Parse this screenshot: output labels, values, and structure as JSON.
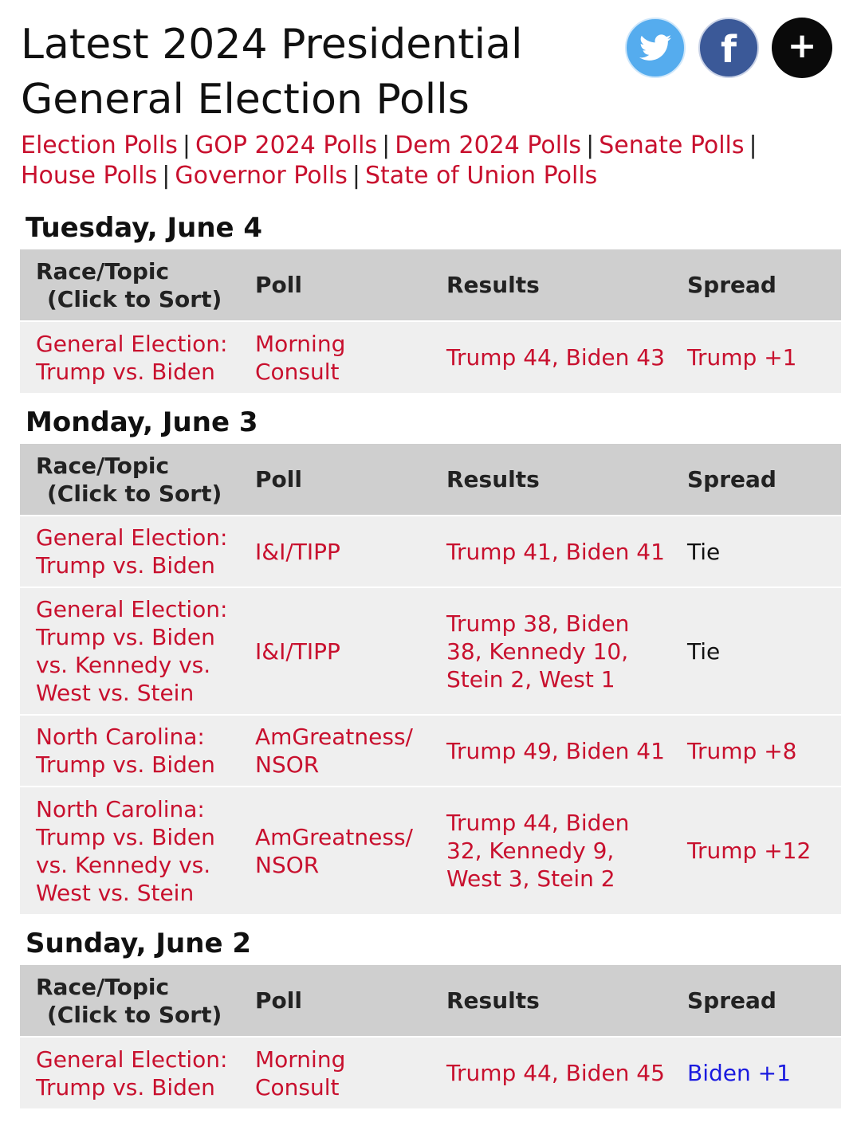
{
  "header": {
    "title_line1": "Latest 2024 Presidential",
    "title_line2": "General Election Polls",
    "social": {
      "twitter": "twitter-icon",
      "facebook": "f",
      "more": "+"
    },
    "links": [
      "Election Polls",
      "GOP 2024 Polls",
      "Dem 2024 Polls",
      "Senate Polls",
      "House Polls",
      "Governor Polls",
      "State of Union Polls"
    ]
  },
  "columns": {
    "race_line1": "Race/Topic",
    "race_line2": "(Click to Sort)",
    "poll": "Poll",
    "results": "Results",
    "spread": "Spread"
  },
  "days": [
    {
      "date": "Tuesday, June 4",
      "rows": [
        {
          "race": "General Election: Trump vs. Biden",
          "poll": "Morning Consult",
          "results": "Trump 44, Biden 43",
          "spread": "Trump +1"
        }
      ]
    },
    {
      "date": "Monday, June 3",
      "rows": [
        {
          "race": "General Election: Trump vs. Biden",
          "poll": "I&I/TIPP",
          "results": "Trump 41, Biden 41",
          "spread": "Tie"
        },
        {
          "race": "General Election: Trump vs. Biden vs. Kennedy vs. West vs. Stein",
          "poll": "I&I/TIPP",
          "results": "Trump 38, Biden 38, Kennedy 10, Stein 2, West 1",
          "spread": "Tie"
        },
        {
          "race": "North Carolina: Trump vs. Biden",
          "poll": "AmGreatness/ NSOR",
          "results": "Trump 49, Biden 41",
          "spread": "Trump +8"
        },
        {
          "race": "North Carolina: Trump vs. Biden vs. Kennedy vs. West vs. Stein",
          "poll": "AmGreatness/ NSOR",
          "results": "Trump 44, Biden 32, Kennedy 9, West 3, Stein 2",
          "spread": "Trump +12"
        }
      ]
    },
    {
      "date": "Sunday, June 2",
      "rows": [
        {
          "race": "General Election: Trump vs. Biden",
          "poll": "Morning Consult",
          "results": "Trump 44, Biden 45",
          "spread": "Biden +1"
        }
      ]
    }
  ]
}
